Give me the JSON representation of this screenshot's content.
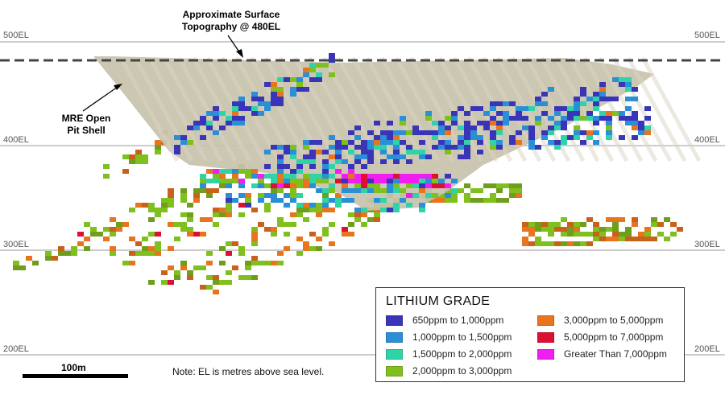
{
  "elevation_labels": {
    "el500": "500EL",
    "el400": "400EL",
    "el300": "300EL",
    "el200": "200EL"
  },
  "topography_callout": {
    "line1": "Approximate Surface",
    "line2": "Topography @ 480EL"
  },
  "pit_callout": {
    "line1": "MRE Open",
    "line2": "Pit Shell"
  },
  "legend": {
    "title": "LITHIUM GRADE",
    "items": [
      {
        "label": "650ppm to 1,000ppm",
        "color": "#3a35b8"
      },
      {
        "label": "1,000ppm to 1,500ppm",
        "color": "#2a8fd6"
      },
      {
        "label": "1,500ppm to 2,000ppm",
        "color": "#2fd3a8"
      },
      {
        "label": "2,000ppm to 3,000ppm",
        "color": "#7fbf1e"
      },
      {
        "label": "3,000ppm to 5,000ppm",
        "color": "#e8741e"
      },
      {
        "label": "5,000ppm to 7,000ppm",
        "color": "#dc1035"
      },
      {
        "label": "Greater Than 7,000ppm",
        "color": "#f01ef0"
      }
    ]
  },
  "scale": {
    "label": "100m"
  },
  "note": "Note: EL is metres above sea level.",
  "colors": {
    "pit_shell": "#c8c2ad",
    "grid_line": "#9a9a9a",
    "topography_line": "#444444",
    "low_green": "#6e9e1c",
    "orange_dark": "#c8621a"
  }
}
